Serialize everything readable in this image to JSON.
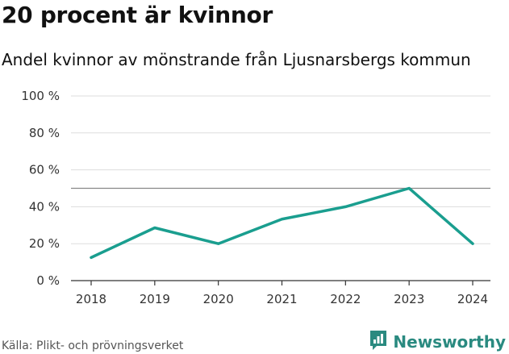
{
  "chart_data": {
    "type": "line",
    "title": "20 procent är kvinnor",
    "subtitle": "Andel kvinnor av mönstrande från Ljusnarsbergs kommun",
    "x": [
      "2018",
      "2019",
      "2020",
      "2021",
      "2022",
      "2023",
      "2024"
    ],
    "series": [
      {
        "name": "Andel kvinnor",
        "values": [
          12.5,
          28.6,
          20.0,
          33.3,
          40.0,
          50.0,
          20.0
        ]
      }
    ],
    "reference_line": {
      "value": 50
    },
    "ylim": [
      0,
      100
    ],
    "yticks": [
      0,
      20,
      40,
      60,
      80,
      100
    ],
    "ytick_labels": [
      "0 %",
      "20 %",
      "40 %",
      "60 %",
      "80 %",
      "100 %"
    ],
    "xlabel": "",
    "ylabel": "",
    "grid": true
  },
  "footer": {
    "source": "Källa: Plikt- och prövningsverket",
    "brand": "Newsworthy"
  },
  "colors": {
    "line": "#1a9e8f",
    "grid": "#dddddd",
    "reference": "#888888",
    "brand": "#2a8a80"
  },
  "icons": {
    "brand_logo": "bar-chart-speech-bubble-icon"
  }
}
